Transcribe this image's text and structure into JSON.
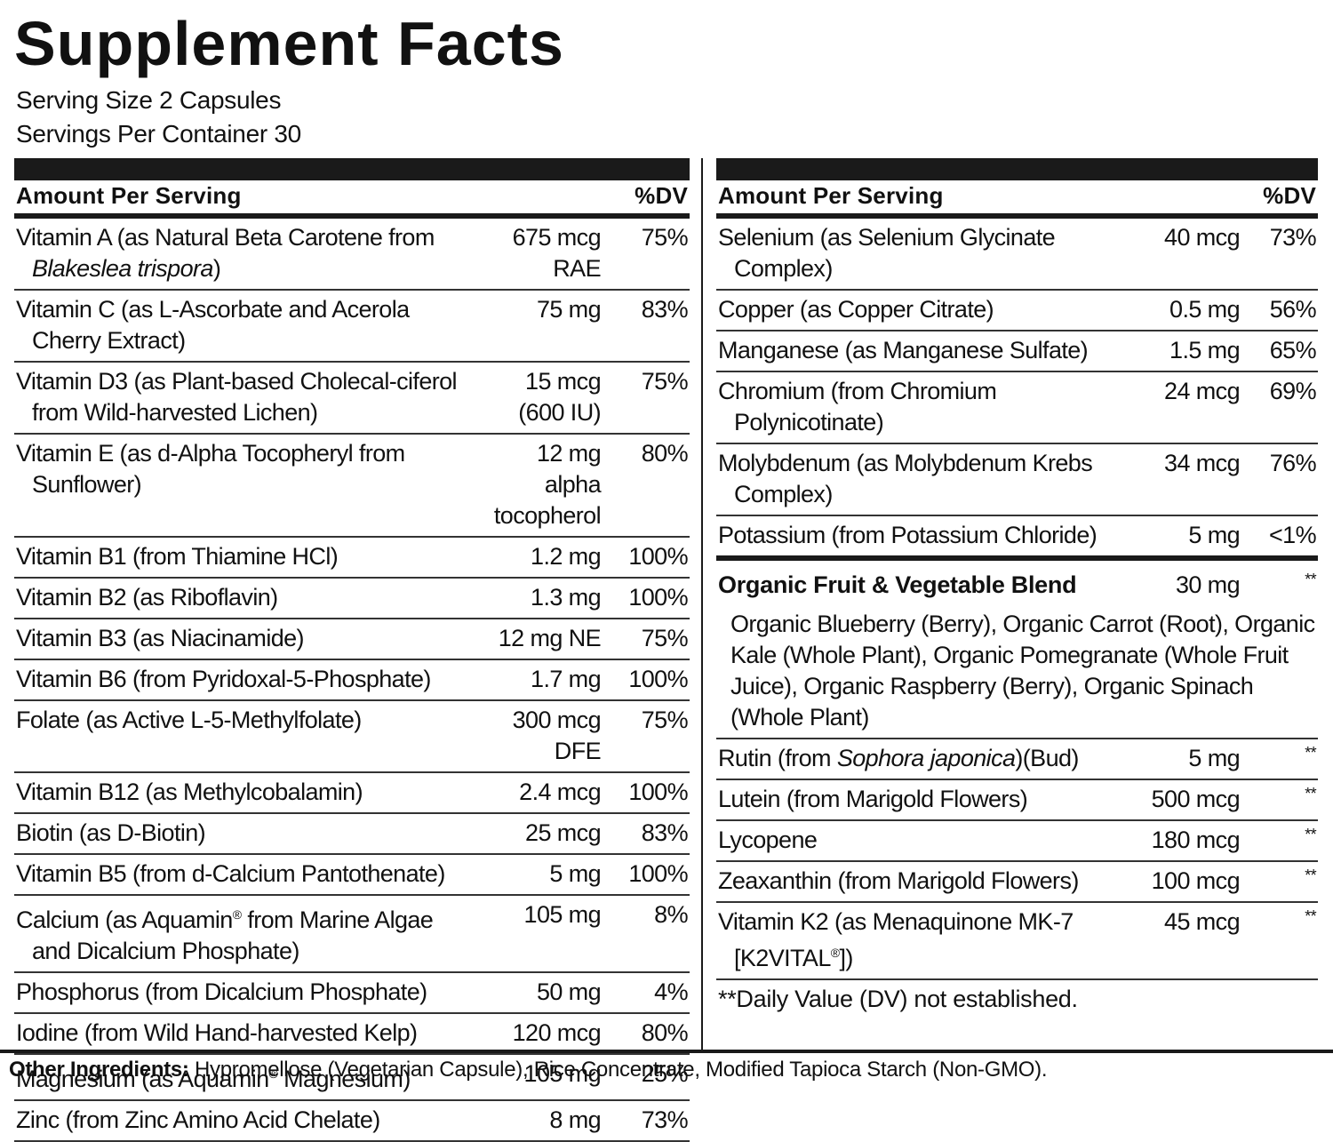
{
  "title": "Supplement Facts",
  "serving_size": "Serving Size 2 Capsules",
  "servings_per_container": "Servings Per Container 30",
  "left": {
    "header": {
      "amount": "Amount Per Serving",
      "dv": "%DV"
    },
    "rows": [
      {
        "name": [
          "Vitamin A (as Natural Beta Carotene from ",
          {
            "i": "Blakeslea trispora"
          },
          ")"
        ],
        "amount": "675 mcg RAE",
        "dv": "75%"
      },
      {
        "name": "Vitamin C (as L-Ascorbate and Acerola Cherry Extract)",
        "amount": "75 mg",
        "dv": "83%"
      },
      {
        "name": "Vitamin D3 (as Plant-based Cholecal-ciferol from Wild-harvested Lichen)",
        "amount": "15 mcg (600 IU)",
        "dv": "75%"
      },
      {
        "name": "Vitamin E (as d-Alpha Tocopheryl from Sunflower)",
        "amount": "12 mg alpha tocopherol",
        "dv": "80%"
      },
      {
        "name": "Vitamin B1 (from Thiamine HCl)",
        "amount": "1.2 mg",
        "dv": "100%"
      },
      {
        "name": "Vitamin B2 (as Riboflavin)",
        "amount": "1.3 mg",
        "dv": "100%"
      },
      {
        "name": "Vitamin B3 (as Niacinamide)",
        "amount": "12 mg NE",
        "dv": "75%"
      },
      {
        "name": "Vitamin B6 (from Pyridoxal-5-Phosphate)",
        "amount": "1.7 mg",
        "dv": "100%"
      },
      {
        "name": "Folate (as Active L-5-Methylfolate)",
        "amount": "300 mcg DFE",
        "dv": "75%"
      },
      {
        "name": "Vitamin B12 (as Methylcobalamin)",
        "amount": "2.4 mcg",
        "dv": "100%"
      },
      {
        "name": "Biotin (as D-Biotin)",
        "amount": "25 mcg",
        "dv": "83%"
      },
      {
        "name": "Vitamin B5 (from d-Calcium Pantothenate)",
        "amount": "5 mg",
        "dv": "100%"
      },
      {
        "name": [
          "Calcium (as Aquamin",
          {
            "sup": "®"
          },
          " from Marine Algae and Dicalcium Phosphate)"
        ],
        "amount": "105 mg",
        "dv": "8%"
      },
      {
        "name": "Phosphorus (from Dicalcium Phosphate)",
        "amount": "50 mg",
        "dv": "4%"
      },
      {
        "name": "Iodine (from Wild Hand-harvested Kelp)",
        "amount": "120 mcg",
        "dv": "80%"
      },
      {
        "name": [
          "Magnesium (as Aquamin",
          {
            "sup": "®"
          },
          " Magnesium)"
        ],
        "amount": "105 mg",
        "dv": "25%"
      },
      {
        "name": "Zinc (from Zinc Amino Acid Chelate)",
        "amount": "8 mg",
        "dv": "73%"
      }
    ]
  },
  "right": {
    "header": {
      "amount": "Amount Per Serving",
      "dv": "%DV"
    },
    "rows": [
      {
        "name": "Selenium (as Selenium Glycinate Complex)",
        "amount": "40 mcg",
        "dv": "73%"
      },
      {
        "name": "Copper (as Copper Citrate)",
        "amount": "0.5 mg",
        "dv": "56%"
      },
      {
        "name": "Manganese (as Manganese Sulfate)",
        "amount": "1.5 mg",
        "dv": "65%"
      },
      {
        "name": "Chromium (from Chromium Polynicotinate)",
        "amount": "24 mcg",
        "dv": "69%"
      },
      {
        "name": "Molybdenum (as Molybdenum Krebs Complex)",
        "amount": "34 mcg",
        "dv": "76%"
      },
      {
        "name": "Potassium (from Potassium Chloride)",
        "amount": "5 mg",
        "dv": "<1%"
      }
    ],
    "blend": {
      "name": "Organic Fruit & Vegetable Blend",
      "amount": "30 mg",
      "dv": "**",
      "description": "Organic Blueberry (Berry), Organic Carrot (Root), Organic Kale (Whole Plant), Organic Pomegranate (Whole Fruit Juice), Organic Raspberry (Berry), Organic Spinach (Whole Plant)"
    },
    "other_rows": [
      {
        "name": [
          "Rutin (from ",
          {
            "i": "Sophora japonica"
          },
          ")(Bud)"
        ],
        "amount": "5 mg",
        "dv": "**"
      },
      {
        "name": "Lutein (from Marigold Flowers)",
        "amount": "500 mcg",
        "dv": "**"
      },
      {
        "name": "Lycopene",
        "amount": "180 mcg",
        "dv": "**"
      },
      {
        "name": "Zeaxanthin (from Marigold Flowers)",
        "amount": "100 mcg",
        "dv": "**"
      },
      {
        "name": [
          "Vitamin K2 (as Menaquinone MK-7 [K2VITAL",
          {
            "sup": "®"
          },
          "])"
        ],
        "amount": "45 mcg",
        "dv": "**"
      }
    ],
    "footnote": "**Daily Value (DV) not established."
  },
  "other_ingredients": {
    "label": "Other Ingredients:",
    "text": "Hypromellose (Vegetarian Capsule), Rice Concentrate, Modified Tapioca Starch (Non-GMO)."
  }
}
